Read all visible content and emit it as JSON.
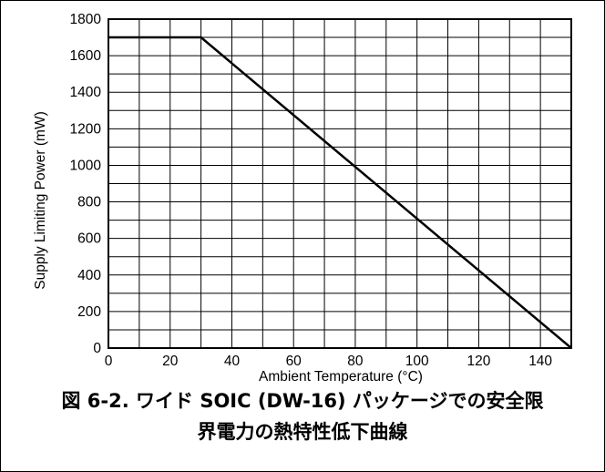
{
  "chart_data": {
    "type": "line",
    "xlabel": "Ambient Temperature (°C)",
    "ylabel": "Supply Limiting Power (mW)",
    "xlim": [
      0,
      150
    ],
    "ylim": [
      0,
      1800
    ],
    "xticks": [
      0,
      20,
      40,
      60,
      80,
      100,
      120,
      140
    ],
    "yticks": [
      0,
      200,
      400,
      600,
      800,
      1000,
      1200,
      1400,
      1600,
      1800
    ],
    "grid": true,
    "grid_x_step": 10,
    "grid_y_step": 100,
    "series": [
      {
        "x": [
          0,
          30,
          150
        ],
        "y": [
          1700,
          1700,
          0
        ],
        "color": "#000000"
      }
    ]
  },
  "caption": {
    "line1": "図 6-2. ワイド SOIC (DW-16) パッケージでの安全限",
    "line2": "界電力の熱特性低下曲線"
  }
}
